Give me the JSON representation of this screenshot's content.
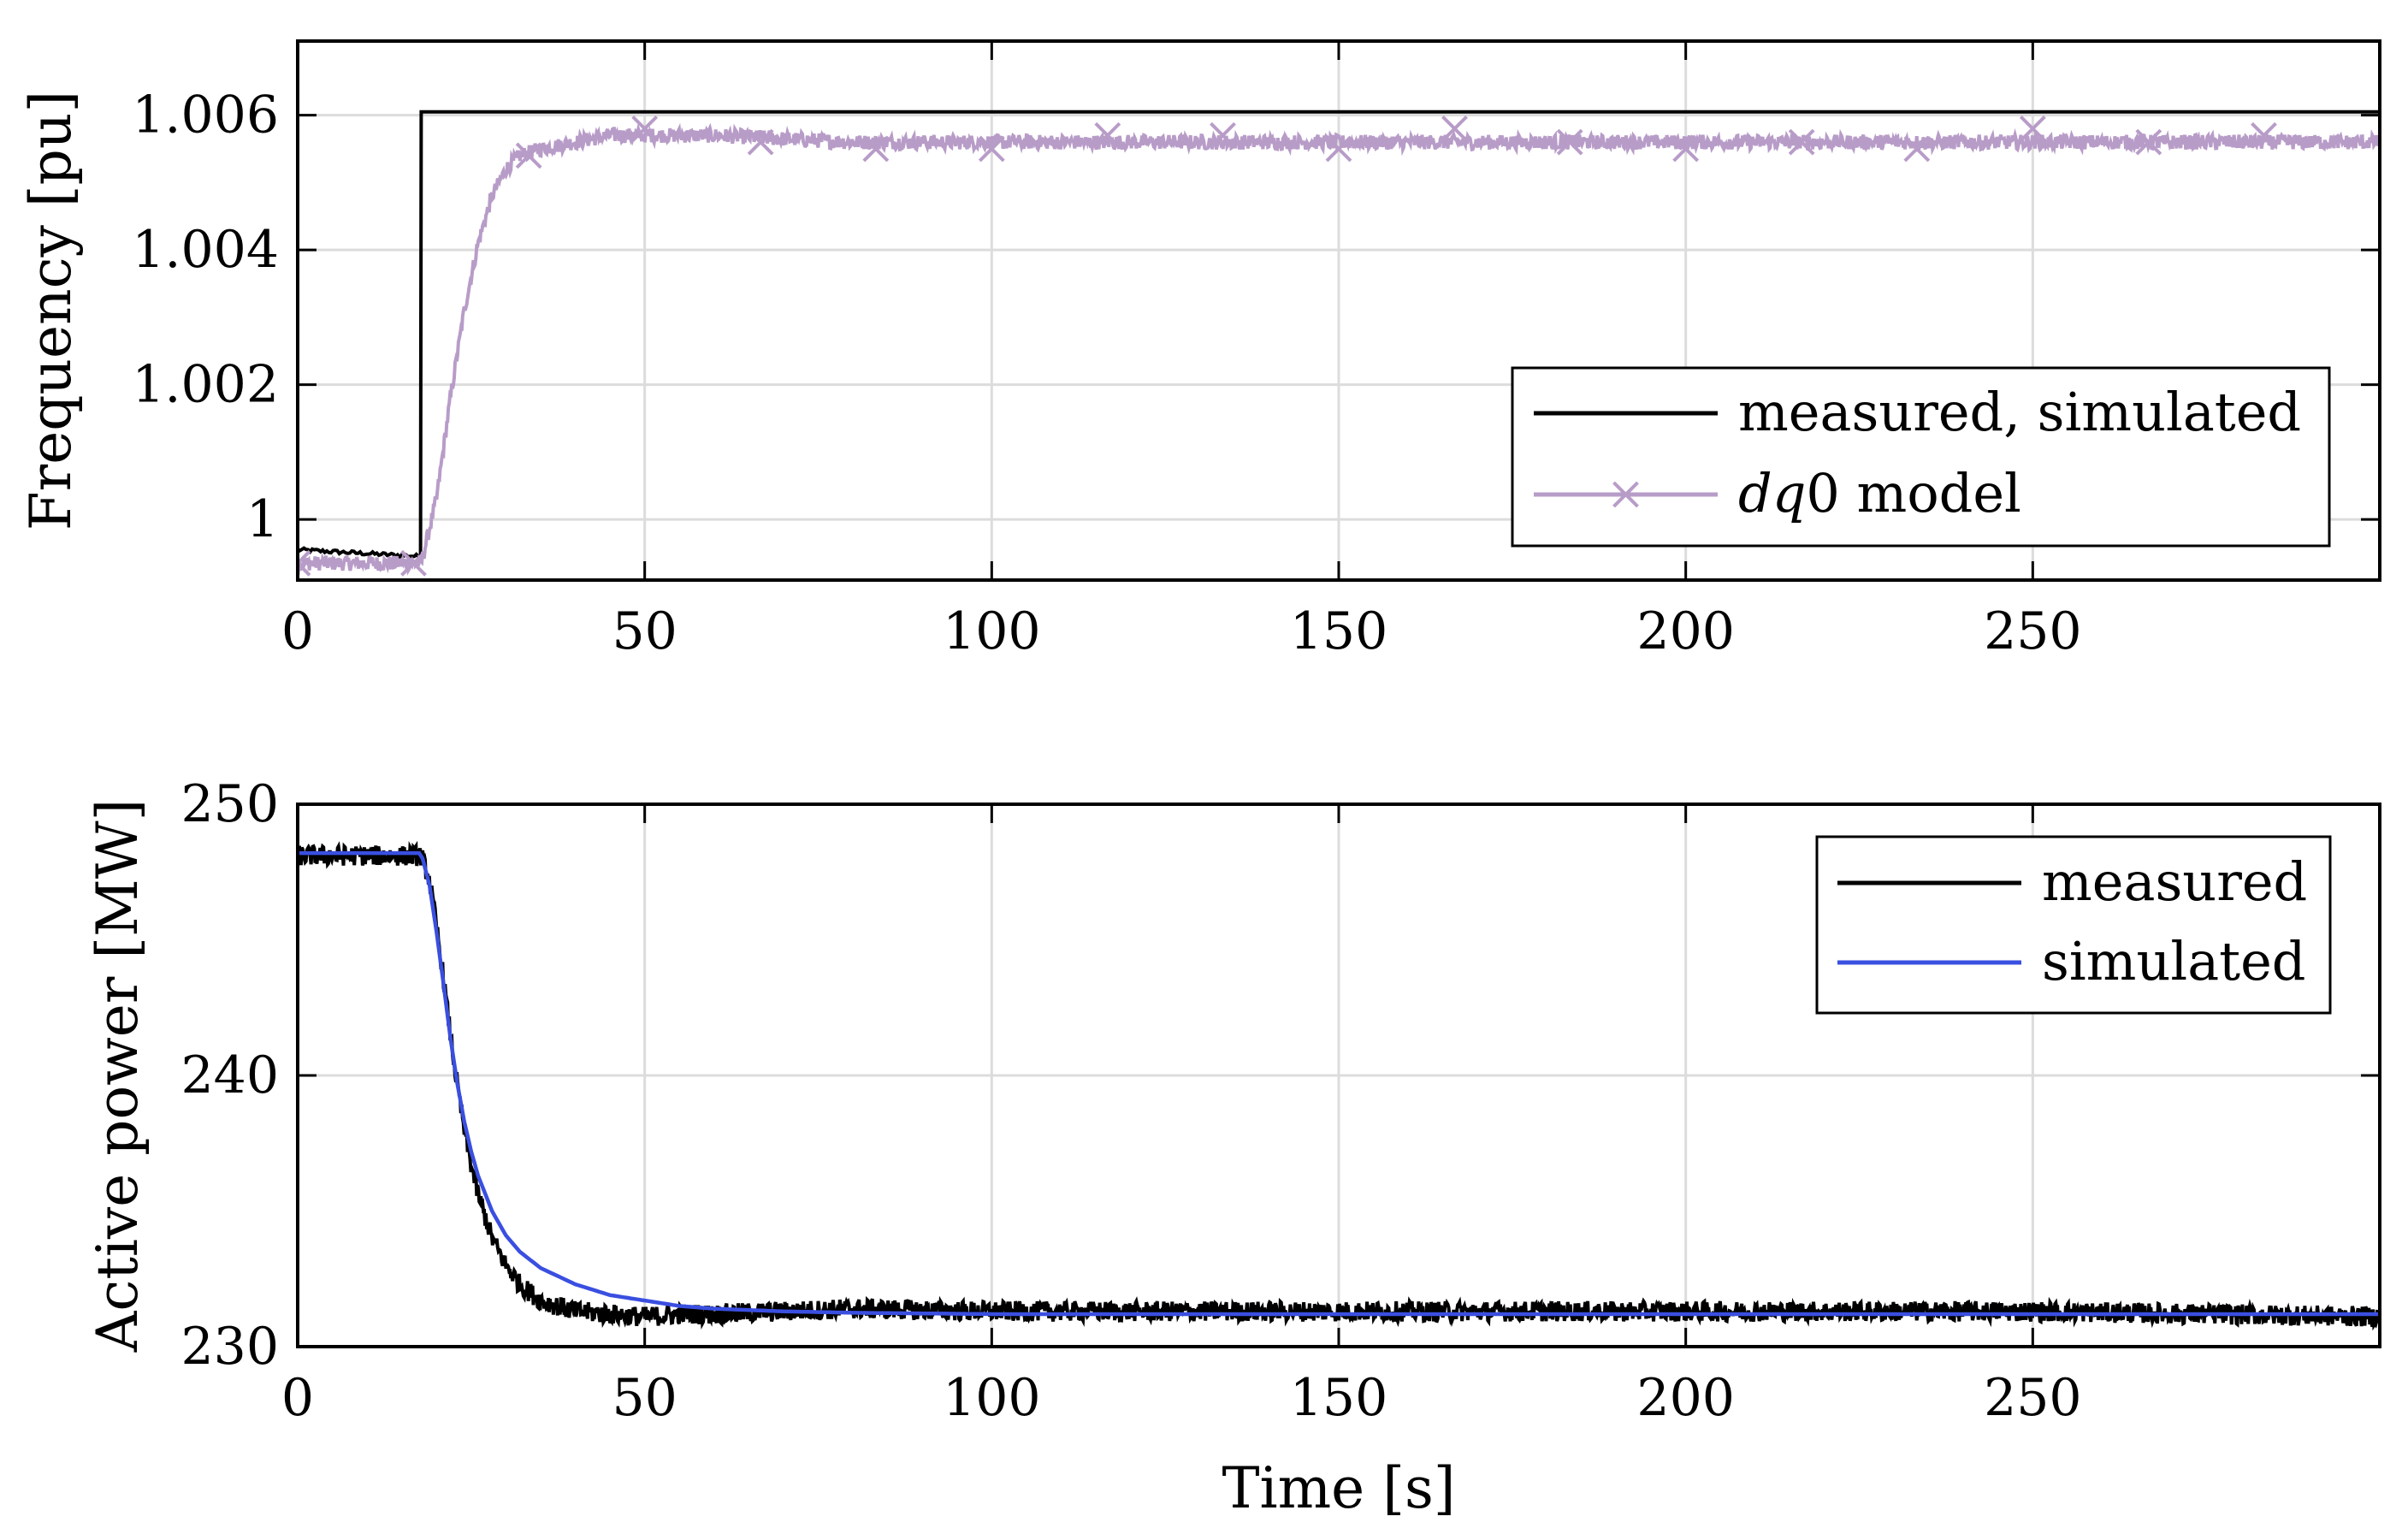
{
  "chart_data": [
    {
      "type": "line",
      "ylabel": "Frequency [pu]",
      "xlabel": "",
      "xlim": [
        0,
        300
      ],
      "ylim": [
        0.9991,
        1.0071
      ],
      "xticks": [
        0,
        50,
        100,
        150,
        200,
        250
      ],
      "xtick_labels": [
        "0",
        "50",
        "100",
        "150",
        "200",
        "250"
      ],
      "yticks": [
        1.0,
        1.002,
        1.004,
        1.006
      ],
      "ytick_labels": [
        "1",
        "1.002",
        "1.004",
        "1.006"
      ],
      "grid": true,
      "legend_position": "lower-right",
      "series": [
        {
          "name": "measured, simulated",
          "color": "#000000",
          "marker": "none",
          "x": [
            0,
            17.8,
            17.8,
            300
          ],
          "y": [
            0.99955,
            0.99945,
            1.00605,
            1.00605
          ]
        },
        {
          "name": "dq0 model",
          "name_parts": [
            "dq",
            "0 model"
          ],
          "color": "#b89cc8",
          "marker": "x",
          "x": [
            0,
            17.8,
            20,
            22,
            24,
            26,
            28,
            30,
            32,
            35,
            40,
            45,
            50,
            60,
            80,
            100,
            150,
            200,
            250,
            300
          ],
          "y": [
            0.99935,
            0.99935,
            1.0003,
            1.0018,
            1.0031,
            1.0041,
            1.0048,
            1.0052,
            1.0054,
            1.0055,
            1.0056,
            1.0057,
            1.0057,
            1.0057,
            1.0056,
            1.0056,
            1.0056,
            1.0056,
            1.0056,
            1.0056
          ],
          "marker_x": [
            0,
            16.7,
            33.3,
            50,
            66.7,
            83.3,
            100,
            116.7,
            133.3,
            150,
            166.7,
            183.3,
            200,
            216.7,
            233.3,
            250,
            266.7,
            283.3
          ],
          "marker_y": [
            0.99935,
            0.99935,
            1.0054,
            1.0058,
            1.0056,
            1.0055,
            1.0055,
            1.0057,
            1.0057,
            1.0055,
            1.0058,
            1.0056,
            1.0055,
            1.0056,
            1.0055,
            1.0058,
            1.0056,
            1.0057
          ]
        }
      ]
    },
    {
      "type": "line",
      "ylabel": "Active power [MW]",
      "xlabel": "Time [s]",
      "xlim": [
        0,
        300
      ],
      "ylim": [
        230,
        250
      ],
      "xticks": [
        0,
        50,
        100,
        150,
        200,
        250
      ],
      "xtick_labels": [
        "0",
        "50",
        "100",
        "150",
        "200",
        "250"
      ],
      "yticks": [
        230,
        240,
        250
      ],
      "ytick_labels": [
        "230",
        "240",
        "250"
      ],
      "grid": true,
      "legend_position": "top-right",
      "series": [
        {
          "name": "measured",
          "color": "#000000",
          "x": [
            0,
            17.8,
            19,
            20,
            21,
            22,
            23,
            24,
            25,
            26,
            28,
            30,
            32,
            35,
            40,
            45,
            50,
            55,
            60,
            70,
            80,
            100,
            150,
            200,
            250,
            300
          ],
          "y": [
            248.1,
            248.1,
            247.2,
            245.5,
            243.6,
            241.5,
            239.6,
            238.0,
            236.7,
            235.6,
            234.0,
            233.0,
            232.3,
            231.7,
            231.3,
            231.2,
            231.1,
            231.2,
            231.2,
            231.3,
            231.4,
            231.3,
            231.3,
            231.3,
            231.3,
            231.1
          ]
        },
        {
          "name": "simulated",
          "color": "#3a4fe0",
          "x": [
            0,
            17.8,
            19,
            20,
            21,
            22,
            23,
            24,
            25,
            26,
            28,
            30,
            32,
            35,
            40,
            45,
            50,
            55,
            60,
            70,
            80,
            100,
            150,
            200,
            250,
            300
          ],
          "y": [
            248.2,
            248.2,
            247.0,
            245.3,
            243.4,
            241.4,
            239.7,
            238.3,
            237.2,
            236.3,
            235.0,
            234.1,
            233.5,
            232.9,
            232.3,
            231.9,
            231.7,
            231.5,
            231.4,
            231.3,
            231.25,
            231.2,
            231.2,
            231.2,
            231.2,
            231.2
          ]
        }
      ]
    }
  ]
}
